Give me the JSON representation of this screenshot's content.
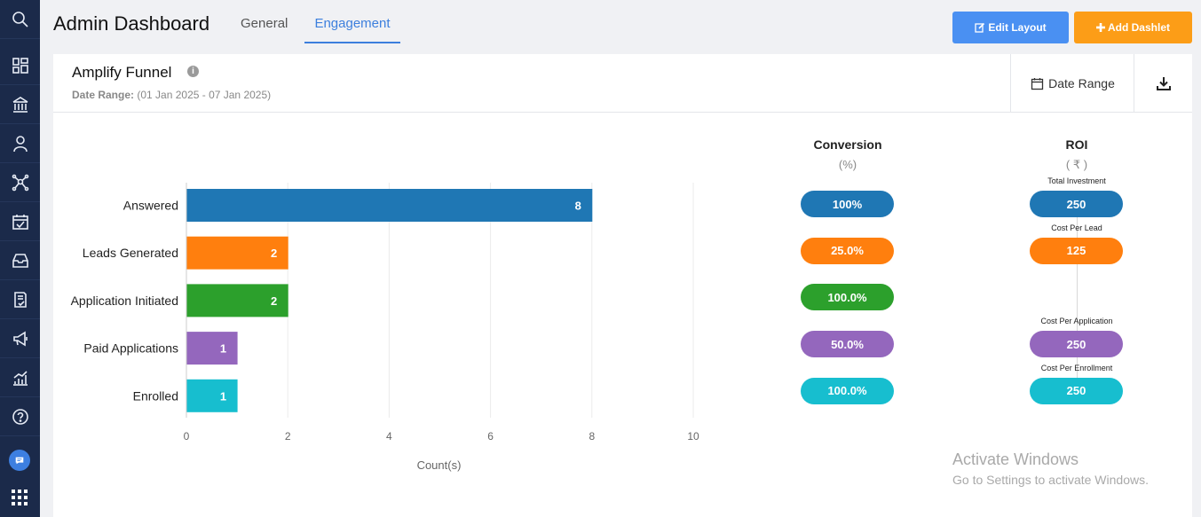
{
  "sidebar": {
    "icons": [
      "search-icon",
      "dashboard-icon",
      "institution-icon",
      "user-icon",
      "network-icon",
      "calendar-check-icon",
      "inbox-icon",
      "document-check-icon",
      "megaphone-icon",
      "analytics-icon",
      "help-icon"
    ],
    "chat_icon": "chat-icon",
    "apps_icon": "apps-grid-icon"
  },
  "header": {
    "title": "Admin Dashboard",
    "tabs": [
      {
        "label": "General",
        "active": false
      },
      {
        "label": "Engagement",
        "active": true
      }
    ],
    "edit_layout_label": "Edit Layout",
    "add_dashlet_label": "Add Dashlet"
  },
  "card": {
    "title": "Amplify Funnel",
    "info_icon": "i",
    "date_label": "Date Range:",
    "date_value": "(01 Jan 2025 - 07 Jan 2025)",
    "date_range_button": "Date Range"
  },
  "chart_data": {
    "type": "bar",
    "orientation": "horizontal",
    "categories": [
      "Answered",
      "Leads Generated",
      "Application Initiated",
      "Paid Applications",
      "Enrolled"
    ],
    "values": [
      8,
      2,
      2,
      1,
      1
    ],
    "colors": [
      "#1f77b4",
      "#ff7f0e",
      "#2ca02c",
      "#9467bd",
      "#17becf"
    ],
    "xlabel": "Count(s)",
    "xlim": [
      0,
      10
    ],
    "xticks": [
      0,
      2,
      4,
      6,
      8,
      10
    ]
  },
  "conversion": {
    "title": "Conversion",
    "unit": "(%)",
    "values": [
      "100%",
      "25.0%",
      "100.0%",
      "50.0%",
      "100.0%"
    ]
  },
  "roi": {
    "title": "ROI",
    "unit": "( ₹ )",
    "items": [
      {
        "label": "Total Investment",
        "value": "250"
      },
      {
        "label": "Cost Per Lead",
        "value": "125"
      },
      {
        "label": "",
        "value": ""
      },
      {
        "label": "Cost Per Application",
        "value": "250"
      },
      {
        "label": "Cost Per Enrollment",
        "value": "250"
      }
    ]
  },
  "watermark": {
    "line1": "Activate Windows",
    "line2": "Go to Settings to activate Windows."
  }
}
